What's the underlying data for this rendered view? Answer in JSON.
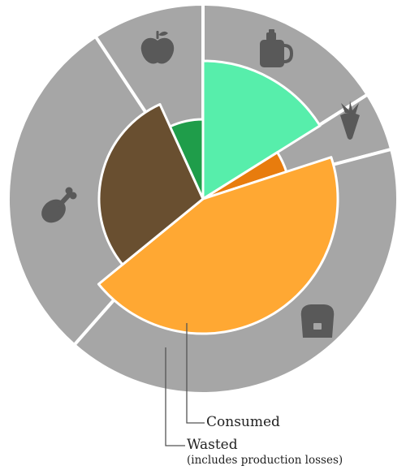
{
  "chart_data": {
    "type": "pie",
    "title": "",
    "start_angle_deg": 0,
    "series": [
      {
        "name": "Wasted",
        "ring": "outer",
        "slices": [
          {
            "category": "dairy",
            "value": 16.0,
            "color": "#a6a6a6",
            "icon": "milk-jug-icon"
          },
          {
            "category": "vegetables",
            "value": 4.9,
            "color": "#a6a6a6",
            "icon": "carrot-icon"
          },
          {
            "category": "grains",
            "value": 40.6,
            "color": "#a6a6a6",
            "icon": "bread-icon"
          },
          {
            "category": "meat",
            "value": 29.2,
            "color": "#a6a6a6",
            "icon": "chicken-leg-icon"
          },
          {
            "category": "fruit",
            "value": 9.3,
            "color": "#a6a6a6",
            "icon": "apple-icon"
          }
        ]
      },
      {
        "name": "Consumed",
        "ring": "inner",
        "slices": [
          {
            "category": "dairy",
            "value": 16.1,
            "color": "#57eeab"
          },
          {
            "category": "vegetables",
            "value": 3.9,
            "color": "#e87c0d"
          },
          {
            "category": "grains",
            "value": 44.1,
            "color": "#ffa833"
          },
          {
            "category": "meat",
            "value": 29.1,
            "color": "#694f30"
          },
          {
            "category": "fruit",
            "value": 6.8,
            "color": "#1f9d4a"
          }
        ]
      }
    ],
    "annotations": {
      "consumed": "Consumed",
      "wasted": "Wasted",
      "wasted_note": "(includes production losses)"
    },
    "separator_color": "#ffffff",
    "leader_color": "#555555",
    "icon_color": "#595959"
  }
}
